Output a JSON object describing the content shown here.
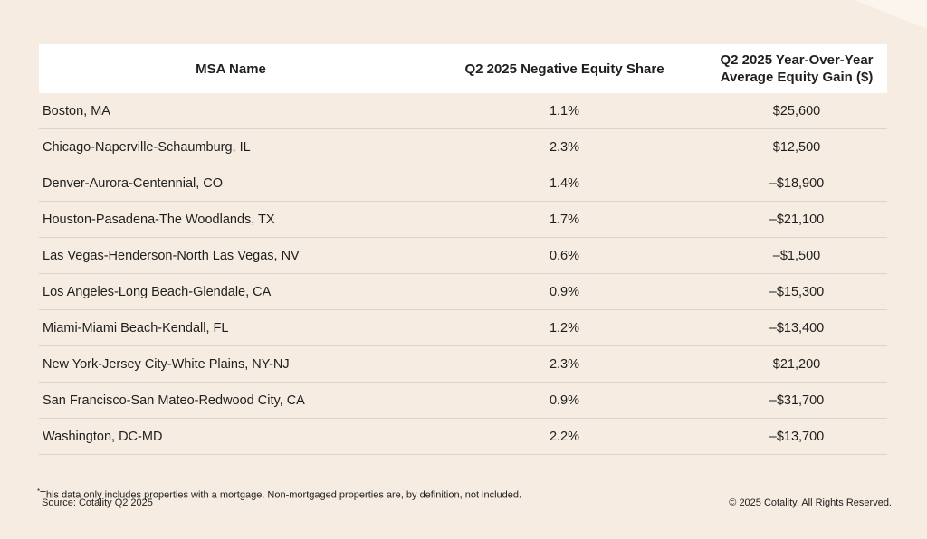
{
  "chart_data": {
    "type": "table",
    "columns": [
      "MSA Name",
      "Q2 2025  Negative Equity Share",
      "Q2 2025 Year-Over-Year Average Equity Gain ($)"
    ],
    "header": {
      "name": "MSA Name",
      "share": "Q2 2025  Negative Equity Share",
      "gain_line1": "Q2 2025 Year-Over-Year",
      "gain_line2": "Average Equity Gain ($)"
    },
    "rows": [
      {
        "name": "Boston, MA",
        "share": "1.1%",
        "gain": "$25,600"
      },
      {
        "name": "Chicago-Naperville-Schaumburg, IL",
        "share": "2.3%",
        "gain": "$12,500"
      },
      {
        "name": "Denver-Aurora-Centennial, CO",
        "share": "1.4%",
        "gain": "–$18,900"
      },
      {
        "name": "Houston-Pasadena-The Woodlands, TX",
        "share": "1.7%",
        "gain": "–$21,100"
      },
      {
        "name": "Las Vegas-Henderson-North Las Vegas, NV",
        "share": "0.6%",
        "gain": "–$1,500"
      },
      {
        "name": "Los Angeles-Long Beach-Glendale, CA",
        "share": "0.9%",
        "gain": "–$15,300"
      },
      {
        "name": "Miami-Miami Beach-Kendall, FL",
        "share": "1.2%",
        "gain": "–$13,400"
      },
      {
        "name": "New York-Jersey City-White Plains, NY-NJ",
        "share": "2.3%",
        "gain": "$21,200"
      },
      {
        "name": "San Francisco-San Mateo-Redwood City, CA",
        "share": "0.9%",
        "gain": "–$31,700"
      },
      {
        "name": "Washington, DC-MD",
        "share": "2.2%",
        "gain": "–$13,700"
      }
    ]
  },
  "footer": {
    "star": "*",
    "note": "This data only includes properties with a mortgage. Non-mortgaged properties are, by definition, not included.",
    "source": "Source: Cotality Q2 2025",
    "copyright": "© 2025 Cotality. All Rights Reserved."
  },
  "colors": {
    "background": "#f6ece1",
    "header_background": "#ffffff",
    "divider": "#d9d4cc",
    "text": "#1f1f1f"
  }
}
